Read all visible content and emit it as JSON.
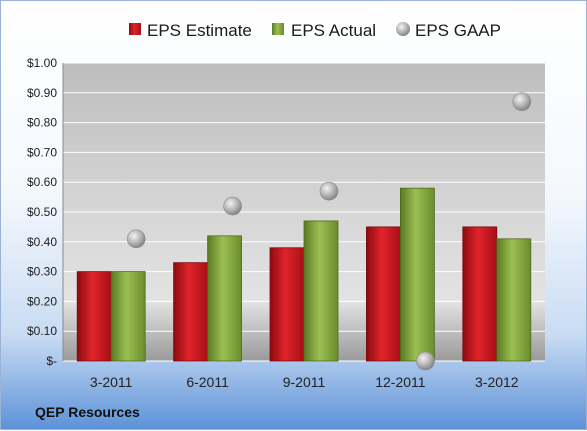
{
  "company_label": "QEP Resources",
  "chart_data": {
    "type": "bar",
    "categories": [
      "3-2011",
      "6-2011",
      "9-2011",
      "12-2011",
      "3-2012"
    ],
    "series": [
      {
        "name": "EPS Estimate",
        "kind": "bar",
        "color": "#c8141c",
        "values": [
          0.3,
          0.33,
          0.38,
          0.45,
          0.45
        ]
      },
      {
        "name": "EPS Actual",
        "kind": "bar",
        "color": "#7fa03a",
        "values": [
          0.3,
          0.42,
          0.47,
          0.58,
          0.41
        ]
      },
      {
        "name": "EPS GAAP",
        "kind": "scatter",
        "color": "#a8a8a8",
        "values": [
          0.41,
          0.52,
          0.57,
          0.0,
          0.87
        ]
      }
    ],
    "ylim": [
      0,
      1.0
    ],
    "yticks": [
      0,
      0.1,
      0.2,
      0.3,
      0.4,
      0.5,
      0.6,
      0.7,
      0.8,
      0.9,
      1.0
    ],
    "ytick_labels": [
      "$-",
      "$0.10",
      "$0.20",
      "$0.30",
      "$0.40",
      "$0.50",
      "$0.60",
      "$0.70",
      "$0.80",
      "$0.90",
      "$1.00"
    ],
    "grid": true,
    "legend": "top-center",
    "plot_background": "gray-gradient"
  }
}
